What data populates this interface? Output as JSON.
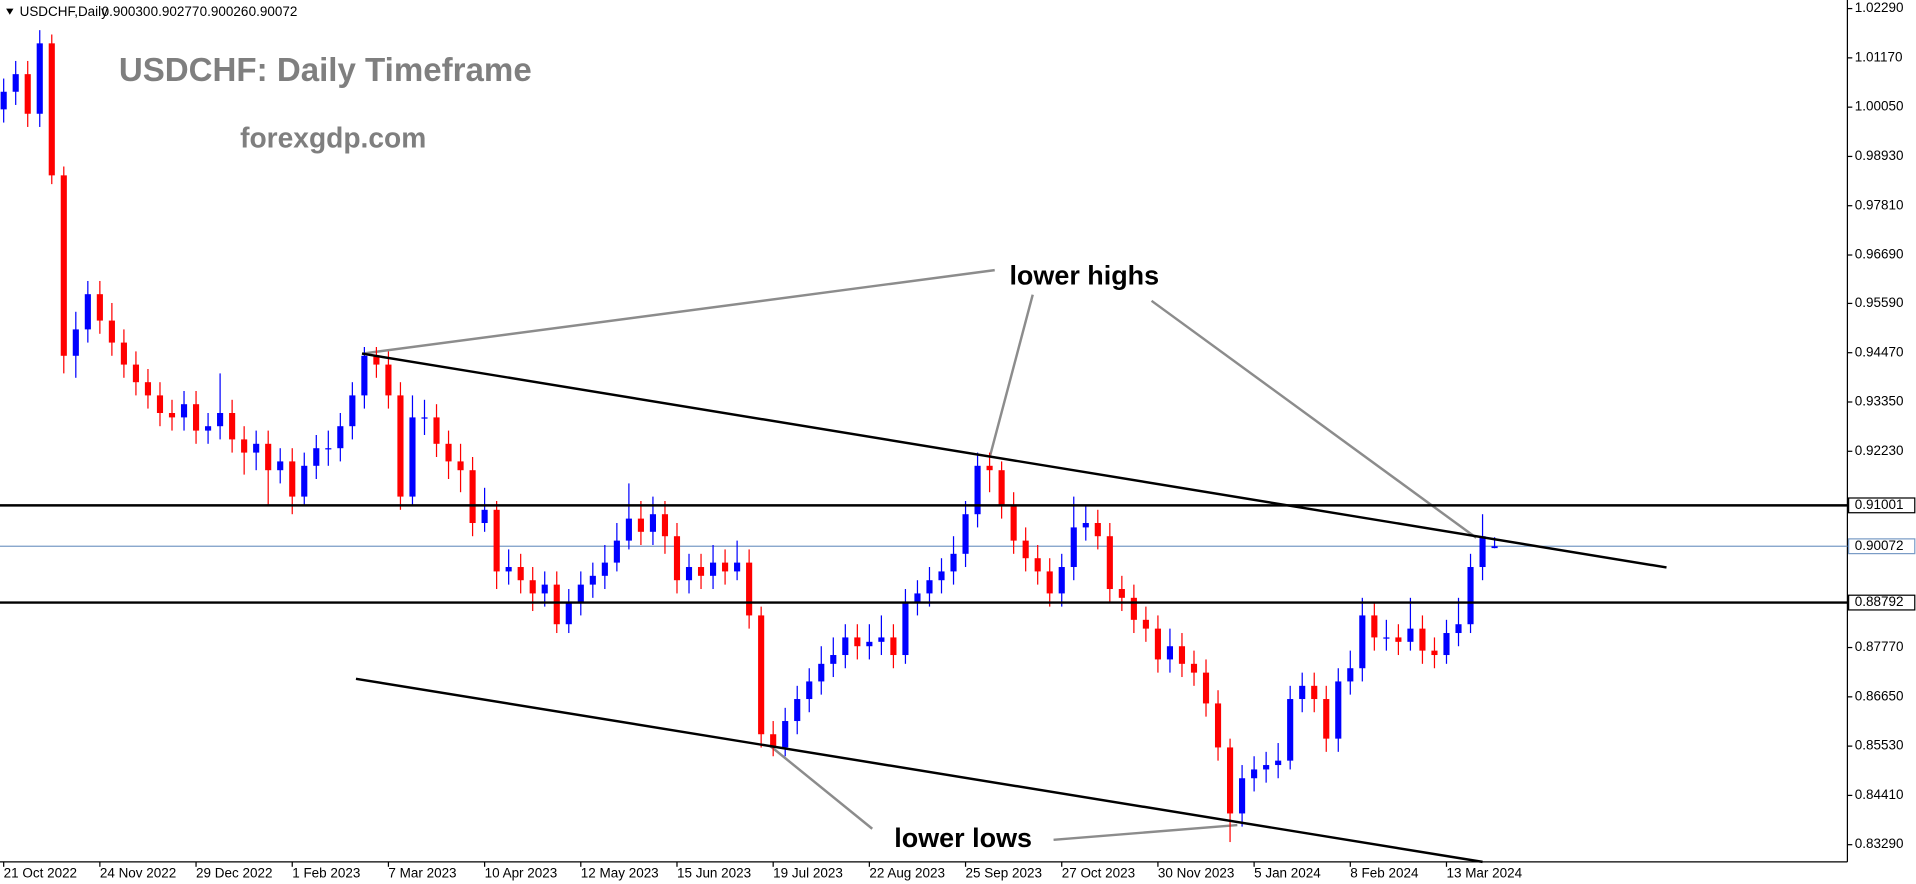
{
  "chart_data": {
    "type": "candlestick",
    "header": {
      "symbol": "USDCHF,Daily",
      "ohlc_labels": [
        "0.90030",
        "0.90277",
        "0.90026",
        "0.90072"
      ]
    },
    "title": "USDCHF: Daily Timeframe",
    "subtitle": "forexgdp.com",
    "annotations": [
      "lower highs",
      "lower lows"
    ],
    "up_color": "#0000ff",
    "down_color": "#ff0000",
    "categories": [
      "21 Oct 2022",
      null,
      null,
      null,
      null,
      null,
      null,
      null,
      "24 Nov 2022",
      null,
      null,
      null,
      null,
      null,
      null,
      null,
      "29 Dec 2022",
      null,
      null,
      null,
      null,
      null,
      null,
      null,
      "1 Feb 2023",
      null,
      null,
      null,
      null,
      null,
      null,
      null,
      "7 Mar 2023",
      null,
      null,
      null,
      null,
      null,
      null,
      null,
      "10 Apr 2023",
      null,
      null,
      null,
      null,
      null,
      null,
      null,
      "12 May 2023",
      null,
      null,
      null,
      null,
      null,
      null,
      null,
      "15 Jun 2023",
      null,
      null,
      null,
      null,
      null,
      null,
      null,
      "19 Jul 2023",
      null,
      null,
      null,
      null,
      null,
      null,
      null,
      "22 Aug 2023",
      null,
      null,
      null,
      null,
      null,
      null,
      null,
      "25 Sep 2023",
      null,
      null,
      null,
      null,
      null,
      null,
      null,
      "27 Oct 2023",
      null,
      null,
      null,
      null,
      null,
      null,
      null,
      "30 Nov 2023",
      null,
      null,
      null,
      null,
      null,
      null,
      null,
      "5 Jan 2024",
      null,
      null,
      null,
      null,
      null,
      null,
      null,
      "8 Feb 2024",
      null,
      null,
      null,
      null,
      null,
      null,
      null,
      "13 Mar 2024",
      null,
      null,
      null,
      null
    ],
    "ohlc": [
      [
        1.0,
        1.007,
        0.997,
        1.004
      ],
      [
        1.004,
        1.011,
        1.001,
        1.008
      ],
      [
        1.008,
        1.011,
        0.996,
        0.999
      ],
      [
        0.999,
        1.018,
        0.996,
        1.015
      ],
      [
        1.015,
        1.017,
        0.983,
        0.985
      ],
      [
        0.985,
        0.987,
        0.94,
        0.944
      ],
      [
        0.944,
        0.954,
        0.939,
        0.95
      ],
      [
        0.95,
        0.961,
        0.947,
        0.958
      ],
      [
        0.958,
        0.961,
        0.949,
        0.952
      ],
      [
        0.952,
        0.956,
        0.944,
        0.947
      ],
      [
        0.947,
        0.95,
        0.939,
        0.942
      ],
      [
        0.942,
        0.945,
        0.935,
        0.938
      ],
      [
        0.938,
        0.941,
        0.932,
        0.935
      ],
      [
        0.935,
        0.938,
        0.928,
        0.931
      ],
      [
        0.931,
        0.934,
        0.927,
        0.93
      ],
      [
        0.93,
        0.936,
        0.927,
        0.933
      ],
      [
        0.933,
        0.936,
        0.924,
        0.927
      ],
      [
        0.927,
        0.931,
        0.924,
        0.928
      ],
      [
        0.928,
        0.94,
        0.925,
        0.931
      ],
      [
        0.931,
        0.934,
        0.922,
        0.925
      ],
      [
        0.925,
        0.928,
        0.917,
        0.922
      ],
      [
        0.922,
        0.927,
        0.918,
        0.924
      ],
      [
        0.924,
        0.927,
        0.91,
        0.918
      ],
      [
        0.918,
        0.923,
        0.915,
        0.92
      ],
      [
        0.92,
        0.923,
        0.908,
        0.912
      ],
      [
        0.912,
        0.922,
        0.91,
        0.919
      ],
      [
        0.919,
        0.926,
        0.916,
        0.923
      ],
      [
        0.923,
        0.927,
        0.919,
        0.923
      ],
      [
        0.923,
        0.931,
        0.92,
        0.928
      ],
      [
        0.928,
        0.938,
        0.925,
        0.935
      ],
      [
        0.935,
        0.946,
        0.932,
        0.944
      ],
      [
        0.944,
        0.946,
        0.939,
        0.942
      ],
      [
        0.942,
        0.945,
        0.932,
        0.935
      ],
      [
        0.935,
        0.938,
        0.909,
        0.912
      ],
      [
        0.912,
        0.935,
        0.91,
        0.93
      ],
      [
        0.93,
        0.934,
        0.926,
        0.93
      ],
      [
        0.93,
        0.933,
        0.921,
        0.924
      ],
      [
        0.924,
        0.927,
        0.916,
        0.92
      ],
      [
        0.92,
        0.924,
        0.913,
        0.918
      ],
      [
        0.918,
        0.921,
        0.903,
        0.906
      ],
      [
        0.906,
        0.914,
        0.904,
        0.909
      ],
      [
        0.909,
        0.911,
        0.891,
        0.895
      ],
      [
        0.895,
        0.9,
        0.892,
        0.896
      ],
      [
        0.896,
        0.899,
        0.89,
        0.893
      ],
      [
        0.893,
        0.896,
        0.886,
        0.89
      ],
      [
        0.89,
        0.895,
        0.887,
        0.892
      ],
      [
        0.892,
        0.895,
        0.881,
        0.883
      ],
      [
        0.883,
        0.891,
        0.881,
        0.888
      ],
      [
        0.888,
        0.895,
        0.885,
        0.892
      ],
      [
        0.892,
        0.897,
        0.889,
        0.894
      ],
      [
        0.894,
        0.901,
        0.891,
        0.897
      ],
      [
        0.897,
        0.906,
        0.895,
        0.902
      ],
      [
        0.902,
        0.915,
        0.9,
        0.907
      ],
      [
        0.907,
        0.911,
        0.901,
        0.904
      ],
      [
        0.904,
        0.912,
        0.901,
        0.908
      ],
      [
        0.908,
        0.911,
        0.899,
        0.903
      ],
      [
        0.903,
        0.906,
        0.89,
        0.893
      ],
      [
        0.893,
        0.899,
        0.89,
        0.896
      ],
      [
        0.896,
        0.899,
        0.891,
        0.894
      ],
      [
        0.894,
        0.901,
        0.891,
        0.897
      ],
      [
        0.897,
        0.9,
        0.892,
        0.895
      ],
      [
        0.895,
        0.902,
        0.893,
        0.897
      ],
      [
        0.897,
        0.9,
        0.882,
        0.885
      ],
      [
        0.885,
        0.887,
        0.855,
        0.858
      ],
      [
        0.858,
        0.861,
        0.853,
        0.855
      ],
      [
        0.855,
        0.864,
        0.853,
        0.861
      ],
      [
        0.861,
        0.869,
        0.858,
        0.866
      ],
      [
        0.866,
        0.873,
        0.863,
        0.87
      ],
      [
        0.87,
        0.878,
        0.867,
        0.874
      ],
      [
        0.874,
        0.88,
        0.871,
        0.876
      ],
      [
        0.876,
        0.883,
        0.873,
        0.88
      ],
      [
        0.88,
        0.883,
        0.875,
        0.878
      ],
      [
        0.878,
        0.883,
        0.875,
        0.879
      ],
      [
        0.879,
        0.885,
        0.876,
        0.88
      ],
      [
        0.88,
        0.883,
        0.873,
        0.876
      ],
      [
        0.876,
        0.891,
        0.874,
        0.888
      ],
      [
        0.888,
        0.893,
        0.885,
        0.89
      ],
      [
        0.89,
        0.896,
        0.887,
        0.893
      ],
      [
        0.893,
        0.898,
        0.89,
        0.895
      ],
      [
        0.895,
        0.903,
        0.892,
        0.899
      ],
      [
        0.899,
        0.911,
        0.896,
        0.908
      ],
      [
        0.908,
        0.922,
        0.905,
        0.919
      ],
      [
        0.919,
        0.922,
        0.913,
        0.918
      ],
      [
        0.918,
        0.92,
        0.907,
        0.91
      ],
      [
        0.91,
        0.913,
        0.899,
        0.902
      ],
      [
        0.902,
        0.905,
        0.895,
        0.898
      ],
      [
        0.898,
        0.901,
        0.892,
        0.895
      ],
      [
        0.895,
        0.898,
        0.887,
        0.89
      ],
      [
        0.89,
        0.899,
        0.887,
        0.896
      ],
      [
        0.896,
        0.912,
        0.893,
        0.905
      ],
      [
        0.905,
        0.91,
        0.902,
        0.906
      ],
      [
        0.906,
        0.909,
        0.9,
        0.903
      ],
      [
        0.903,
        0.906,
        0.888,
        0.891
      ],
      [
        0.891,
        0.894,
        0.886,
        0.889
      ],
      [
        0.889,
        0.892,
        0.881,
        0.884
      ],
      [
        0.884,
        0.887,
        0.879,
        0.882
      ],
      [
        0.882,
        0.885,
        0.872,
        0.875
      ],
      [
        0.875,
        0.882,
        0.872,
        0.878
      ],
      [
        0.878,
        0.881,
        0.871,
        0.874
      ],
      [
        0.874,
        0.877,
        0.869,
        0.872
      ],
      [
        0.872,
        0.875,
        0.862,
        0.865
      ],
      [
        0.865,
        0.868,
        0.852,
        0.855
      ],
      [
        0.855,
        0.857,
        0.8335,
        0.84
      ],
      [
        0.84,
        0.851,
        0.837,
        0.848
      ],
      [
        0.848,
        0.853,
        0.845,
        0.85
      ],
      [
        0.85,
        0.854,
        0.847,
        0.851
      ],
      [
        0.851,
        0.856,
        0.848,
        0.852
      ],
      [
        0.852,
        0.869,
        0.85,
        0.866
      ],
      [
        0.866,
        0.872,
        0.863,
        0.869
      ],
      [
        0.869,
        0.872,
        0.863,
        0.866
      ],
      [
        0.866,
        0.869,
        0.854,
        0.857
      ],
      [
        0.857,
        0.873,
        0.854,
        0.87
      ],
      [
        0.87,
        0.877,
        0.867,
        0.873
      ],
      [
        0.873,
        0.889,
        0.87,
        0.885
      ],
      [
        0.885,
        0.888,
        0.877,
        0.88
      ],
      [
        0.88,
        0.884,
        0.877,
        0.88
      ],
      [
        0.88,
        0.883,
        0.876,
        0.879
      ],
      [
        0.879,
        0.889,
        0.877,
        0.882
      ],
      [
        0.882,
        0.885,
        0.874,
        0.877
      ],
      [
        0.877,
        0.88,
        0.873,
        0.876
      ],
      [
        0.876,
        0.884,
        0.874,
        0.881
      ],
      [
        0.881,
        0.889,
        0.878,
        0.883
      ],
      [
        0.883,
        0.899,
        0.881,
        0.896
      ],
      [
        0.896,
        0.908,
        0.893,
        0.903
      ],
      [
        0.9003,
        0.90277,
        0.90026,
        0.90072
      ]
    ],
    "ylim": [
      0.82899,
      1.02485
    ],
    "yticks": [
      {
        "value": 1.0229,
        "label": "1.02290"
      },
      {
        "value": 1.0117,
        "label": "1.01170"
      },
      {
        "value": 1.0005,
        "label": "1.00050"
      },
      {
        "value": 0.9893,
        "label": "0.98930"
      },
      {
        "value": 0.9781,
        "label": "0.97810"
      },
      {
        "value": 0.9669,
        "label": "0.96690"
      },
      {
        "value": 0.9559,
        "label": "0.95590"
      },
      {
        "value": 0.9447,
        "label": "0.94470"
      },
      {
        "value": 0.9335,
        "label": "0.93350"
      },
      {
        "value": 0.9223,
        "label": "0.92230"
      },
      {
        "value": 0.8777,
        "label": "0.87770"
      },
      {
        "value": 0.8665,
        "label": "0.86650"
      },
      {
        "value": 0.8553,
        "label": "0.85530"
      },
      {
        "value": 0.8441,
        "label": "0.84410"
      },
      {
        "value": 0.8329,
        "label": "0.83290"
      }
    ],
    "levels": [
      {
        "value": 0.91001,
        "label": "0.91001"
      },
      {
        "value": 0.88792,
        "label": "0.88792"
      }
    ],
    "current_price": {
      "value": 0.90072,
      "label": "0.90072"
    },
    "trendlines": [
      {
        "x": [
          29.8,
          138.3
        ],
        "y": [
          0.9445,
          0.8959
        ]
      },
      {
        "x": [
          29.3,
          123.0
        ],
        "y": [
          0.8706,
          0.829
        ]
      }
    ]
  }
}
